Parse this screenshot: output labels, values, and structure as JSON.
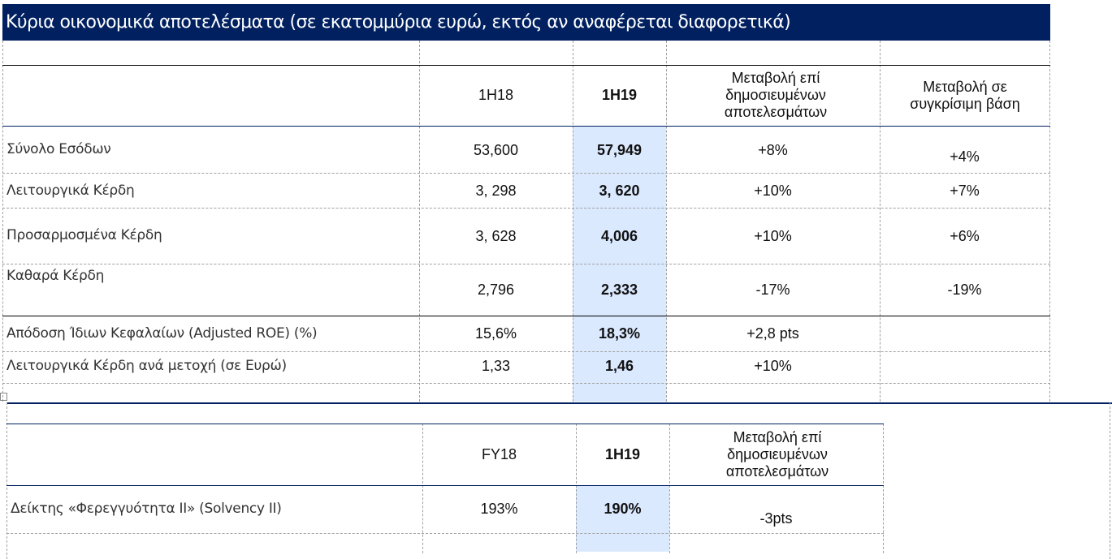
{
  "title": "Κύρια οικονομικά αποτελέσματα (σε εκατομμύρια ευρώ, εκτός αν αναφέρεται διαφορετικά)",
  "table1": {
    "headers": [
      "1H18",
      "1H19",
      "Μεταβολή επί δημοσιευμένων αποτελεσμάτων",
      "Μεταβολή σε συγκρίσιμη βάση"
    ],
    "rows": [
      {
        "label": "Σύνολο Εσόδων",
        "c1": "53,600",
        "c2": "57,949",
        "c3": "+8%",
        "c4": "+4%"
      },
      {
        "label": "Λειτουργικά Κέρδη",
        "c1": "3, 298",
        "c2": "3, 620",
        "c3": "+10%",
        "c4": "+7%"
      },
      {
        "label": "Προσαρμοσμένα Κέρδη",
        "c1": "3, 628",
        "c2": "4,006",
        "c3": "+10%",
        "c4": "+6%"
      },
      {
        "label": "Καθαρά Κέρδη",
        "c1": "2,796",
        "c2": "2,333",
        "c3": "-17%",
        "c4": "-19%"
      },
      {
        "label": "Απόδοση Ίδιων Κεφαλαίων (Adjusted ROE) (%)",
        "c1": "15,6%",
        "c2": "18,3%",
        "c3": "+2,8 pts",
        "c4": ""
      },
      {
        "label": "Λειτουργικά Κέρδη ανά μετοχή (σε Ευρώ)",
        "c1": "1,33",
        "c2": "1,46",
        "c3": "+10%",
        "c4": ""
      }
    ]
  },
  "table2": {
    "headers": [
      "FY18",
      "1H19",
      "Μεταβολή επί δημοσιευμένων αποτελεσμάτων"
    ],
    "rows": [
      {
        "label": "Δείκτης «Φερεγγυότητα II» (Solvency II)",
        "c1": "193%",
        "c2": "190%",
        "c3": "-3pts"
      }
    ]
  },
  "colors": {
    "title_bg": "#002060",
    "highlight": "#dbe9ff"
  }
}
